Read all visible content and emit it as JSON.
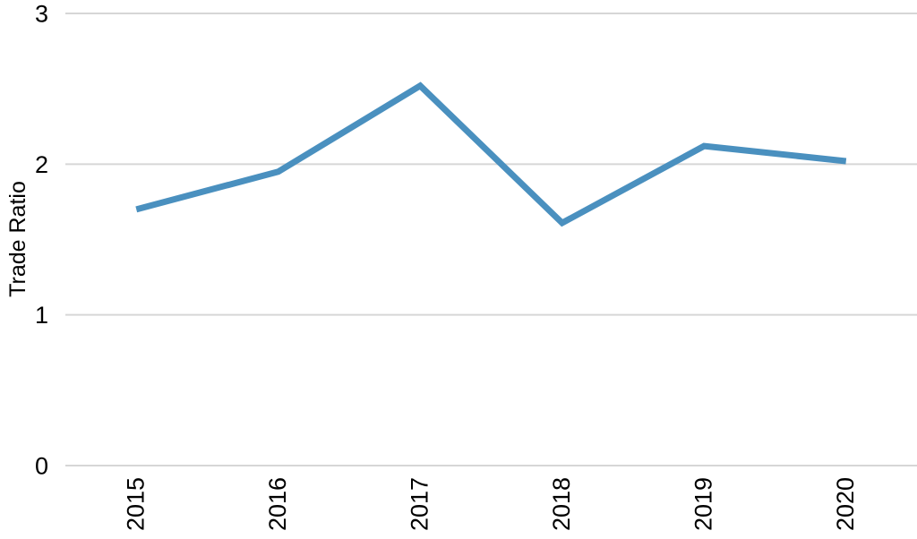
{
  "chart_data": {
    "type": "line",
    "title": "",
    "xlabel": "",
    "ylabel": "Trade Ratio",
    "categories": [
      "2015",
      "2016",
      "2017",
      "2018",
      "2019",
      "2020"
    ],
    "series": [
      {
        "name": "Trade Ratio",
        "values": [
          1.7,
          1.95,
          2.52,
          1.61,
          2.12,
          2.02
        ]
      }
    ],
    "ylim": [
      0,
      3
    ],
    "yticks": [
      0,
      1,
      2,
      3
    ],
    "grid": "horizontal-only",
    "legend": "none",
    "colors": {
      "line": "#4a90bf",
      "gridline": "#d6d6d6",
      "text": "#000000",
      "background": "#ffffff"
    }
  }
}
